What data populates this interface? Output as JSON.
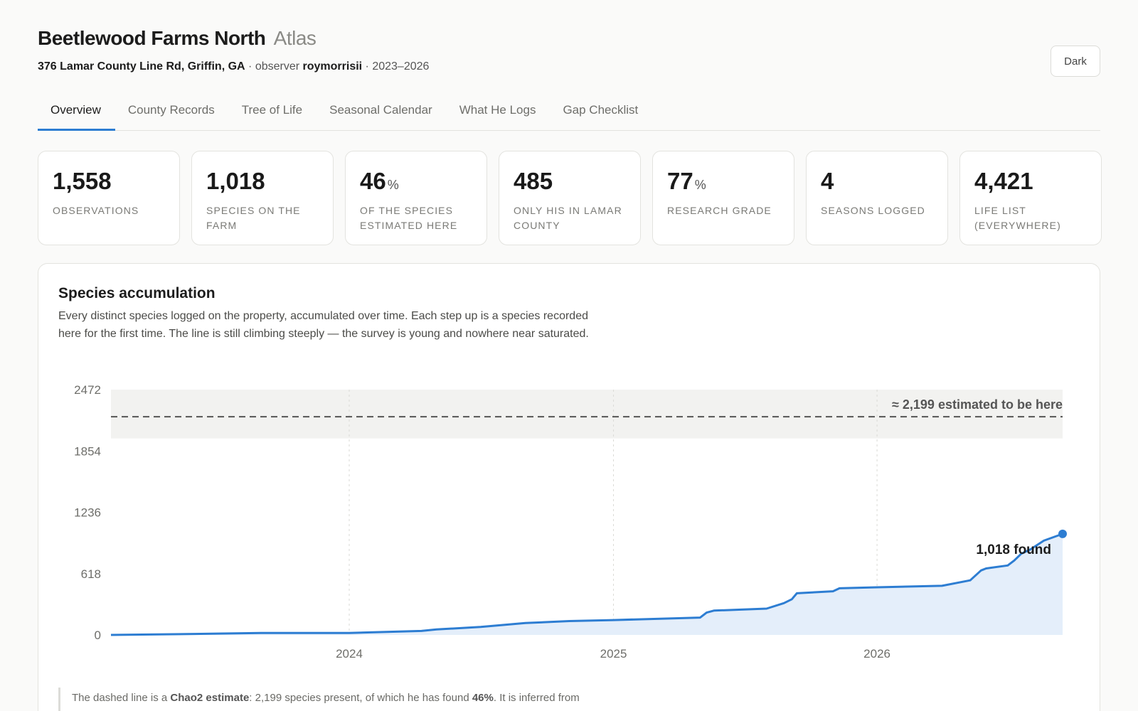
{
  "header": {
    "title": "Beetlewood Farms North",
    "title_suffix": "Atlas",
    "address": "376 Lamar County Line Rd, Griffin, GA",
    "observer_prefix": " · observer ",
    "observer": "roymorrisii",
    "years": " · 2023–2026",
    "theme_button": "Dark"
  },
  "tabs": [
    {
      "label": "Overview",
      "active": true
    },
    {
      "label": "County Records"
    },
    {
      "label": "Tree of Life"
    },
    {
      "label": "Seasonal Calendar"
    },
    {
      "label": "What He Logs"
    },
    {
      "label": "Gap Checklist"
    }
  ],
  "stats": [
    {
      "value": "1,558",
      "unit": "",
      "label": "Observations"
    },
    {
      "value": "1,018",
      "unit": "",
      "label": "Species on the farm"
    },
    {
      "value": "46",
      "unit": "%",
      "label": "Of the species estimated here"
    },
    {
      "value": "485",
      "unit": "",
      "label": "Only his in Lamar County"
    },
    {
      "value": "77",
      "unit": "%",
      "label": "Research grade"
    },
    {
      "value": "4",
      "unit": "",
      "label": "Seasons logged"
    },
    {
      "value": "4,421",
      "unit": "",
      "label": "Life list (everywhere)"
    }
  ],
  "accumulation": {
    "title": "Species accumulation",
    "description": "Every distinct species logged on the property, accumulated over time. Each step up is a species recorded here for the first time. The line is still climbing steeply — the survey is young and nowhere near saturated.",
    "footnote_pre": "The dashed line is a ",
    "footnote_bold1": "Chao2 estimate",
    "footnote_mid": ": 2,199 species present, of which he has found ",
    "footnote_bold2": "46%",
    "footnote_post": ". It is inferred from"
  },
  "colors": {
    "accent": "#2d7dd2",
    "area_fill": "#e4eefa",
    "estimate_band": "#f2f2f0"
  },
  "chart_data": {
    "type": "area",
    "ylim": [
      0,
      2472
    ],
    "yticks": [
      0,
      618,
      1236,
      1854,
      2472
    ],
    "xlim": [
      "2023-02-05",
      "2026-09-15"
    ],
    "xticks": [
      {
        "label": "2024",
        "date": "2024-01-01"
      },
      {
        "label": "2025",
        "date": "2025-01-01"
      },
      {
        "label": "2026",
        "date": "2026-01-01"
      }
    ],
    "estimate": 2199,
    "estimate_band": [
      1980,
      2472
    ],
    "estimate_label": "≈ 2,199 estimated to be here",
    "end_label": "1,018 found",
    "series": [
      {
        "x": [
          "2023-02-05",
          "2023-06-01",
          "2023-09-01",
          "2024-01-01",
          "2024-04-10",
          "2024-05-01",
          "2024-07-01",
          "2024-09-01",
          "2024-11-01",
          "2025-01-01",
          "2025-05-01",
          "2025-05-10",
          "2025-05-20",
          "2025-08-01",
          "2025-08-25",
          "2025-09-05",
          "2025-09-12",
          "2025-11-01",
          "2025-11-10",
          "2026-01-01",
          "2026-04-01",
          "2026-05-10",
          "2026-05-25",
          "2026-06-01",
          "2026-07-01",
          "2026-07-10",
          "2026-07-20",
          "2026-08-01",
          "2026-08-20",
          "2026-09-15"
        ],
        "y": [
          0,
          10,
          20,
          20,
          40,
          55,
          80,
          120,
          140,
          150,
          175,
          225,
          245,
          265,
          320,
          360,
          420,
          440,
          470,
          480,
          495,
          550,
          650,
          670,
          700,
          750,
          820,
          860,
          950,
          1018
        ]
      }
    ]
  }
}
